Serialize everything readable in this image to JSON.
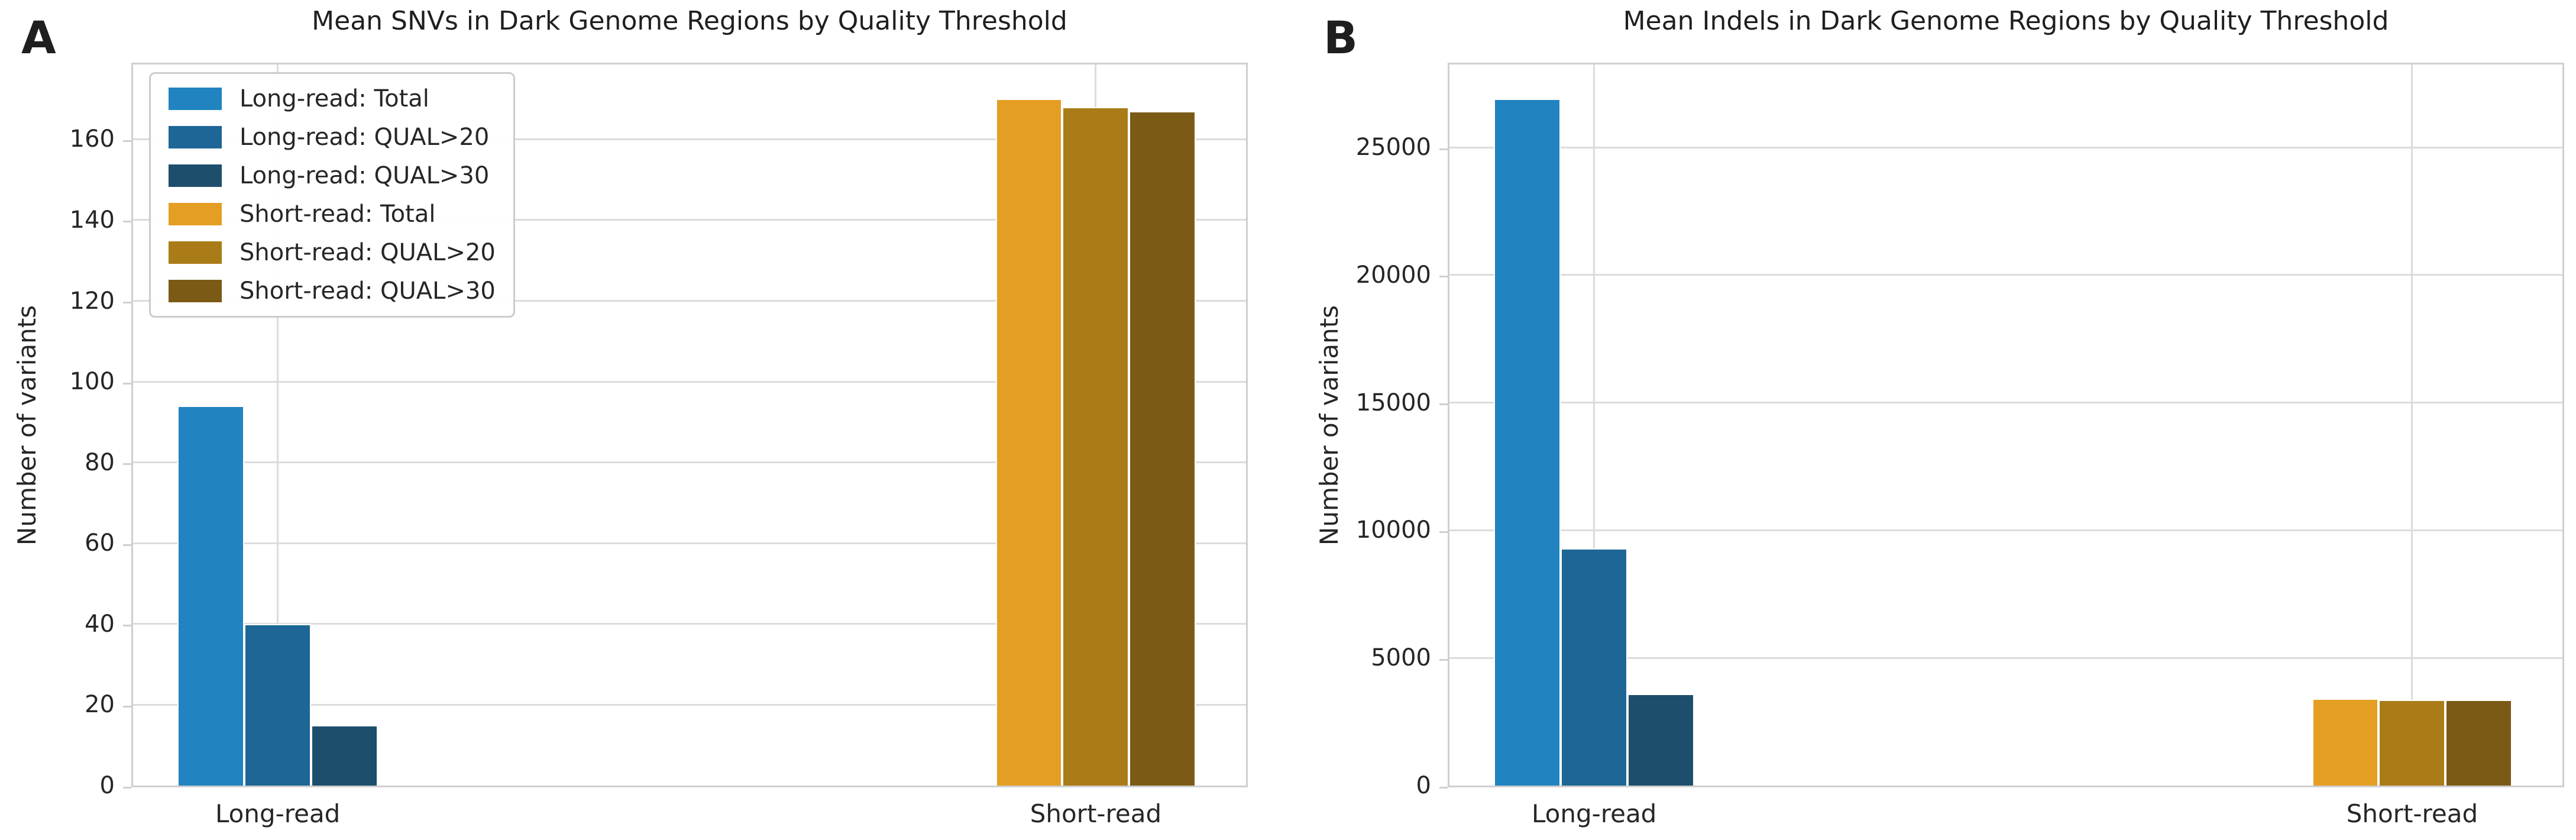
{
  "figure": {
    "background": "#ffffff",
    "text_color": "#262626",
    "title_color": "#1f1f1f",
    "grid_color": "#dcdcdc",
    "frame_color": "#cfcfcf",
    "legend_border_color": "#cccccc",
    "panel_labels": [
      "A",
      "B"
    ]
  },
  "chart_data": [
    {
      "type": "bar",
      "panel_label": "A",
      "title": "Mean SNVs in Dark Genome Regions by Quality Threshold",
      "xlabel": "",
      "ylabel": "Number of variants",
      "categories": [
        "Long-read",
        "Short-read"
      ],
      "series": [
        {
          "name": "Long-read: Total",
          "color": "#2183c0",
          "values": [
            94,
            null
          ]
        },
        {
          "name": "Long-read: QUAL>20",
          "color": "#1d6695",
          "values": [
            40,
            null
          ]
        },
        {
          "name": "Long-read: QUAL>30",
          "color": "#1d4e6c",
          "values": [
            15,
            null
          ]
        },
        {
          "name": "Short-read: Total",
          "color": "#e59e24",
          "values": [
            null,
            170
          ]
        },
        {
          "name": "Short-read: QUAL>20",
          "color": "#aa7c17",
          "values": [
            null,
            168
          ]
        },
        {
          "name": "Short-read: QUAL>30",
          "color": "#7a5a15",
          "values": [
            null,
            167
          ]
        }
      ],
      "yticks": [
        0,
        20,
        40,
        60,
        80,
        100,
        120,
        140,
        160
      ],
      "ylim": [
        0,
        178.5
      ],
      "grid": true,
      "legend": {
        "visible": true,
        "position": "upper left"
      }
    },
    {
      "type": "bar",
      "panel_label": "B",
      "title": "Mean Indels in Dark Genome Regions by Quality Threshold",
      "xlabel": "",
      "ylabel": "Number of variants",
      "categories": [
        "Long-read",
        "Short-read"
      ],
      "series": [
        {
          "name": "Long-read: Total",
          "color": "#2183c0",
          "values": [
            26900,
            null
          ]
        },
        {
          "name": "Long-read: QUAL>20",
          "color": "#1d6695",
          "values": [
            9300,
            null
          ]
        },
        {
          "name": "Long-read: QUAL>30",
          "color": "#1d4e6c",
          "values": [
            3600,
            null
          ]
        },
        {
          "name": "Short-read: Total",
          "color": "#e59e24",
          "values": [
            null,
            3400
          ]
        },
        {
          "name": "Short-read: QUAL>20",
          "color": "#aa7c17",
          "values": [
            null,
            3360
          ]
        },
        {
          "name": "Short-read: QUAL>30",
          "color": "#7a5a15",
          "values": [
            null,
            3350
          ]
        }
      ],
      "yticks": [
        0,
        5000,
        10000,
        15000,
        20000,
        25000
      ],
      "ylim": [
        0,
        28250
      ],
      "grid": true,
      "legend": {
        "visible": false,
        "position": null
      }
    }
  ]
}
